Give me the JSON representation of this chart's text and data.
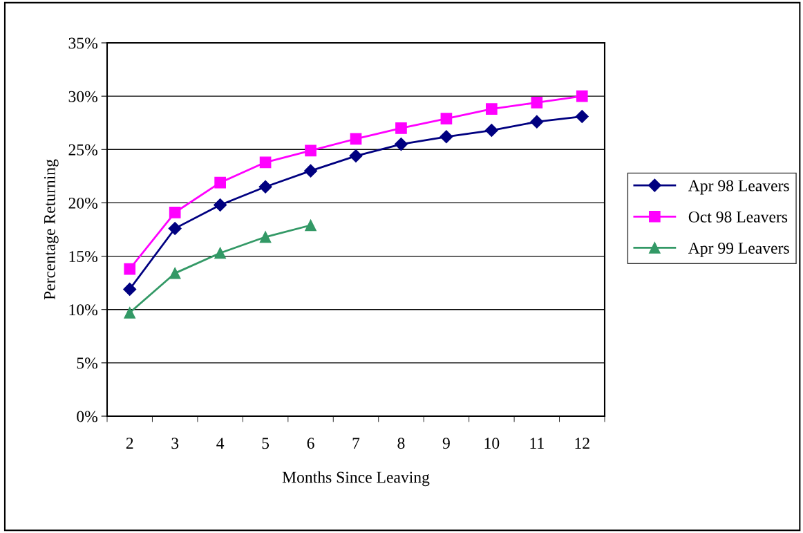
{
  "chart_data": {
    "type": "line",
    "xlabel": "Months Since Leaving",
    "ylabel": "Percentage Returning",
    "categories": [
      "2",
      "3",
      "4",
      "5",
      "6",
      "7",
      "8",
      "9",
      "10",
      "11",
      "12"
    ],
    "series": [
      {
        "name": "Apr 98 Leavers",
        "color": "#000080",
        "marker": "diamond",
        "values": [
          11.9,
          17.6,
          19.8,
          21.5,
          23.0,
          24.4,
          25.5,
          26.2,
          26.8,
          27.6,
          28.1
        ]
      },
      {
        "name": "Oct 98 Leavers",
        "color": "#ff00ff",
        "marker": "square",
        "values": [
          13.8,
          19.1,
          21.9,
          23.8,
          24.9,
          26.0,
          27.0,
          27.9,
          28.8,
          29.4,
          30.0
        ]
      },
      {
        "name": "Apr 99 Leavers",
        "color": "#339966",
        "marker": "triangle",
        "values": [
          9.7,
          13.4,
          15.3,
          16.8,
          17.9,
          null,
          null,
          null,
          null,
          null,
          null
        ]
      }
    ],
    "ylim": [
      0,
      35
    ],
    "yticks": [
      {
        "value": 0,
        "label": "0%"
      },
      {
        "value": 5,
        "label": "5%"
      },
      {
        "value": 10,
        "label": "10%"
      },
      {
        "value": 15,
        "label": "15%"
      },
      {
        "value": 20,
        "label": "20%"
      },
      {
        "value": 25,
        "label": "25%"
      },
      {
        "value": 30,
        "label": "30%"
      },
      {
        "value": 35,
        "label": "35%"
      }
    ],
    "grid": "y",
    "legend": "right",
    "line_style": "solid"
  }
}
